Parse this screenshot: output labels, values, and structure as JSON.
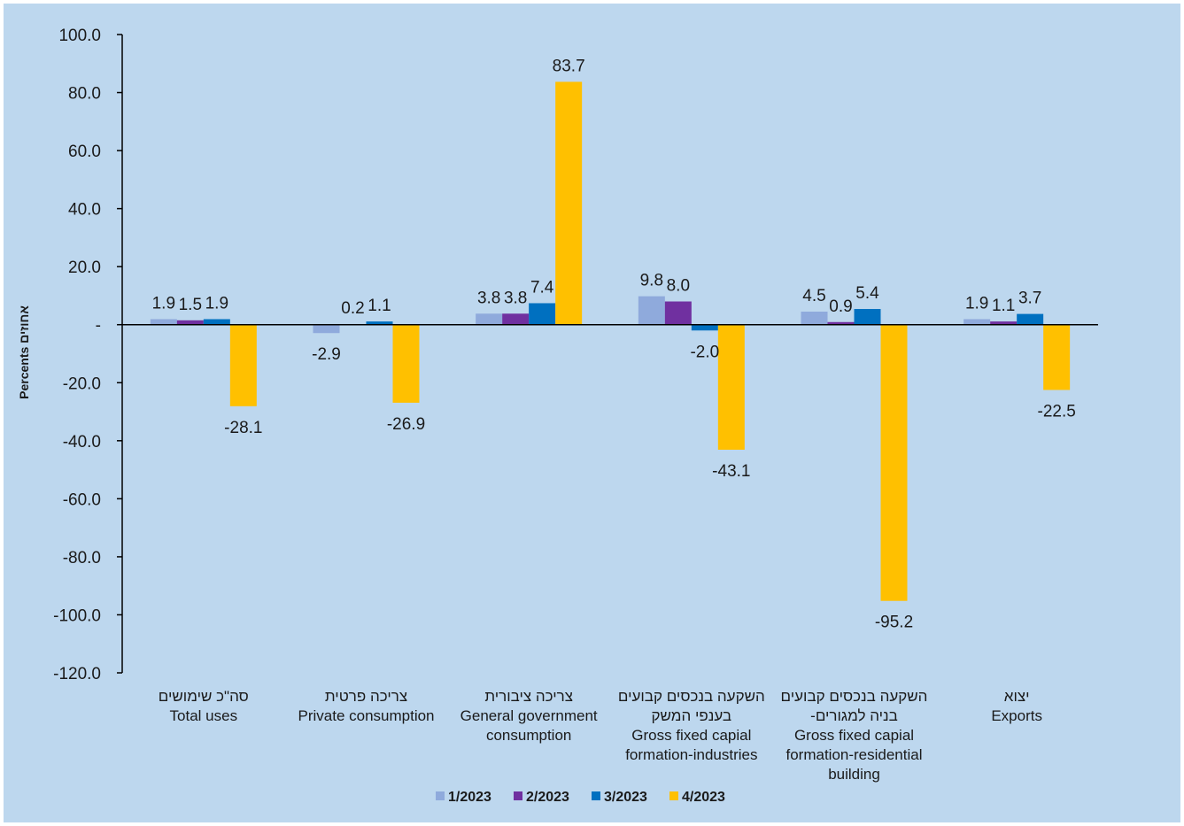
{
  "chart_data": {
    "type": "bar",
    "ylabel": "Percents אחוזים",
    "ylim": [
      -120,
      100
    ],
    "yticks": [
      100,
      80,
      60,
      40,
      20,
      0,
      -20,
      -40,
      -60,
      -80,
      -100,
      -120
    ],
    "ytick_labels": [
      "100.0",
      "80.0",
      "60.0",
      "40.0",
      "20.0",
      "-",
      "-20.0",
      "-40.0",
      "-60.0",
      "-80.0",
      "-100.0",
      "-120.0"
    ],
    "grid": false,
    "legend_position": "bottom",
    "categories": [
      [
        "סה\"כ שימושים",
        "Total uses"
      ],
      [
        "צריכה פרטית",
        "Private consumption"
      ],
      [
        "צריכה ציבורית",
        "General government",
        "consumption"
      ],
      [
        "השקעה בנכסים קבועים",
        "בענפי המשק",
        "Gross fixed capial",
        "formation-industries"
      ],
      [
        "השקעה בנכסים קבועים",
        "-בניה למגורים",
        "Gross fixed capial",
        "formation-residential",
        "building"
      ],
      [
        "יצוא",
        "Exports"
      ]
    ],
    "series": [
      {
        "name": "1/2023",
        "color": "#8faadc",
        "values": [
          1.9,
          -2.9,
          3.8,
          9.8,
          4.5,
          1.9
        ],
        "labels": [
          "1.9",
          "-2.9",
          "3.8",
          "9.8",
          "4.5",
          "1.9"
        ]
      },
      {
        "name": "2/2023",
        "color": "#7030a0",
        "values": [
          1.5,
          0.2,
          3.8,
          8.0,
          0.9,
          1.1
        ],
        "labels": [
          "1.5",
          "0.2",
          "3.8",
          "8.0",
          "0.9",
          "1.1"
        ]
      },
      {
        "name": "3/2023",
        "color": "#0070c0",
        "values": [
          1.9,
          1.1,
          7.4,
          -2.0,
          5.4,
          3.7
        ],
        "labels": [
          "1.9",
          "1.1",
          "7.4",
          "-2.0",
          "5.4",
          "3.7"
        ]
      },
      {
        "name": "4/2023",
        "color": "#ffc000",
        "values": [
          -28.1,
          -26.9,
          83.7,
          -43.1,
          -95.2,
          -22.5
        ],
        "labels": [
          "-28.1",
          "-26.9",
          "83.7",
          "-43.1",
          "-95.2",
          "-22.5"
        ]
      }
    ]
  }
}
